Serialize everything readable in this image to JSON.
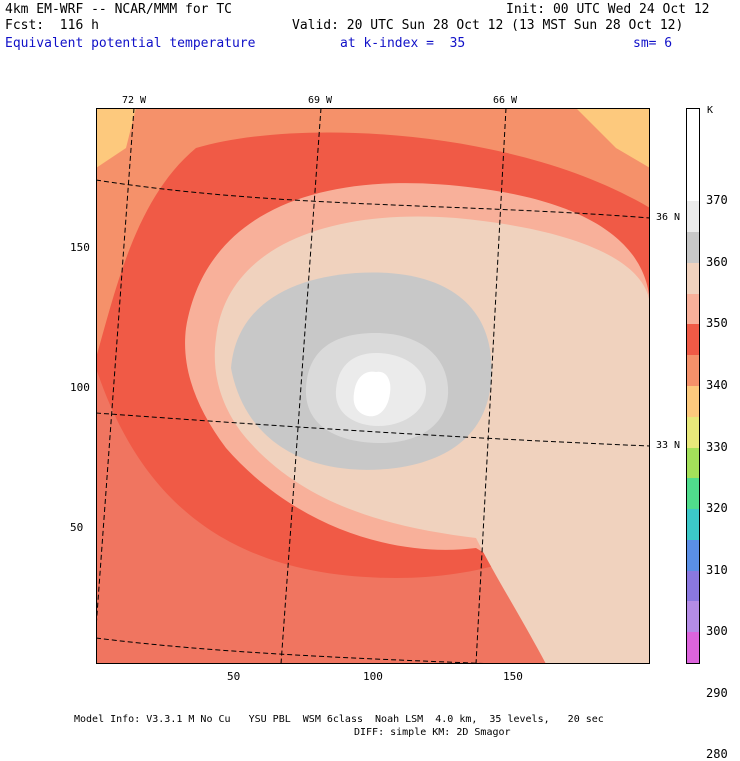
{
  "header": {
    "line1_left": "4km EM-WRF -- NCAR/MMM for TC",
    "line1_right": "Init: 00 UTC Wed 24 Oct 12",
    "line2_left": "Fcst:  116 h",
    "line2_right": "Valid: 20 UTC Sun 28 Oct 12 (13 MST Sun 28 Oct 12)",
    "field_name": "Equivalent potential temperature",
    "k_index_label": "at k-index =  35",
    "sm_label": "sm= 6"
  },
  "map": {
    "longitude_labels": [
      "72 W",
      "69 W",
      "66 W"
    ],
    "latitude_labels": [
      "36 N",
      "33 N"
    ],
    "y_ticks": [
      "150",
      "100",
      "50"
    ],
    "x_ticks": [
      "50",
      "100",
      "150"
    ]
  },
  "colorbar": {
    "unit": "K",
    "labels": [
      "370",
      "360",
      "350",
      "340",
      "330",
      "320",
      "310",
      "300",
      "290",
      "280"
    ],
    "colors": [
      "#ffffff",
      "#ffffff",
      "#ffffff",
      "#ebebeb",
      "#c8c8c8",
      "#f0d2be",
      "#f8b09a",
      "#f05a46",
      "#f5916a",
      "#fdc97d",
      "#e8e87a",
      "#a4e05a",
      "#50dc8c",
      "#3cc8c8",
      "#5a8fe6",
      "#8a78e0",
      "#b48ce6",
      "#dc64dc"
    ]
  },
  "footer": {
    "line1": "Model Info: V3.3.1 M No Cu   YSU PBL  WSM 6class  Noah LSM  4.0 km,  35 levels,   20 sec",
    "line2": "DIFF: simple KM: 2D Smagor"
  }
}
